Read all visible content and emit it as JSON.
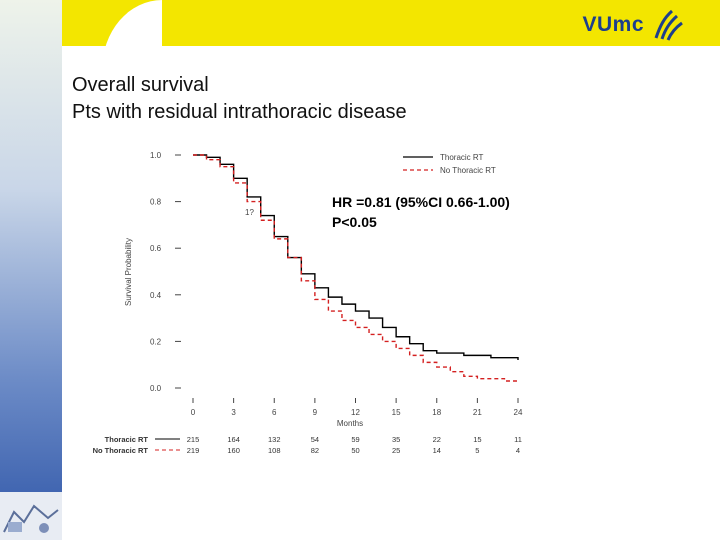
{
  "header": {
    "logo_text": "VUmc"
  },
  "slide": {
    "title_line1": "Overall survival",
    "title_line2": "Pts with residual intrathoracic disease"
  },
  "annotation": {
    "hr_text": "HR =0.81 (95%CI 0.66-1.00)",
    "p_text": "P<0.05"
  },
  "colors": {
    "thoracic": "#000000",
    "no_thoracic": "#d42020",
    "band": "#f3e600",
    "logo": "#1d3f8c"
  },
  "chart_data": {
    "type": "line",
    "title": "",
    "xlabel": "Months",
    "ylabel": "Survival Probability",
    "xlim": [
      0,
      24
    ],
    "ylim": [
      0,
      1.0
    ],
    "x_ticks": [
      "0",
      "3",
      "6",
      "9",
      "12",
      "15",
      "18",
      "21",
      "24"
    ],
    "y_ticks": [
      "0.0",
      "0.2",
      "0.4",
      "0.6",
      "0.8",
      "1.0"
    ],
    "legend_position": "top-right",
    "curve_annotation": "1?",
    "series": [
      {
        "name": "Thoracic RT",
        "style": "solid",
        "x": [
          0,
          1,
          2,
          3,
          4,
          5,
          6,
          7,
          8,
          9,
          10,
          11,
          12,
          13,
          14,
          15,
          16,
          17,
          18,
          19,
          20,
          21,
          22,
          23,
          24
        ],
        "y": [
          1.0,
          0.99,
          0.96,
          0.9,
          0.82,
          0.74,
          0.65,
          0.56,
          0.49,
          0.43,
          0.39,
          0.36,
          0.33,
          0.3,
          0.26,
          0.22,
          0.19,
          0.16,
          0.15,
          0.15,
          0.14,
          0.14,
          0.13,
          0.13,
          0.12
        ]
      },
      {
        "name": "No Thoracic RT",
        "style": "dashed",
        "x": [
          0,
          1,
          2,
          3,
          4,
          5,
          6,
          7,
          8,
          9,
          10,
          11,
          12,
          13,
          14,
          15,
          16,
          17,
          18,
          19,
          20,
          21,
          22,
          23,
          24
        ],
        "y": [
          1.0,
          0.98,
          0.95,
          0.88,
          0.8,
          0.72,
          0.64,
          0.56,
          0.46,
          0.38,
          0.33,
          0.29,
          0.26,
          0.23,
          0.2,
          0.17,
          0.14,
          0.11,
          0.09,
          0.07,
          0.05,
          0.04,
          0.04,
          0.03,
          0.03
        ]
      }
    ],
    "risk_table": {
      "rows": [
        {
          "label": "Thoracic RT",
          "values": [
            "215",
            "164",
            "132",
            "54",
            "59",
            "35",
            "22",
            "15",
            "11"
          ]
        },
        {
          "label": "No Thoracic RT",
          "values": [
            "219",
            "160",
            "108",
            "82",
            "50",
            "25",
            "14",
            "5",
            "4"
          ]
        }
      ]
    }
  }
}
